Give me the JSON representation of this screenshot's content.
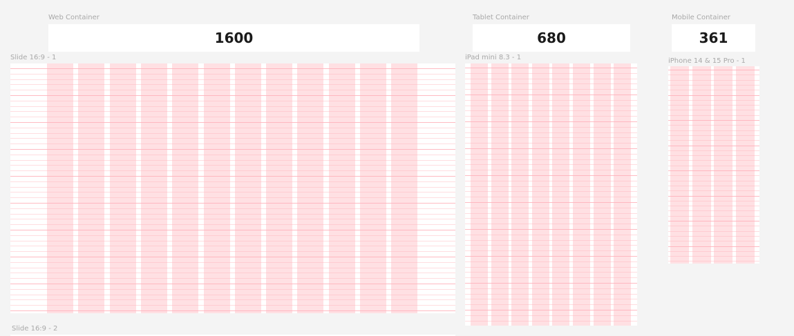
{
  "web": {
    "container_label": "Web Container",
    "container_value": "1600",
    "frame_label": "Slide 16:9 - 1",
    "columns": 12
  },
  "tablet": {
    "container_label": "Tablet Container",
    "container_value": "680",
    "frame_label": "iPad mini 8.3 - 1",
    "columns": 8
  },
  "mobile": {
    "container_label": "Mobile Container",
    "container_value": "361",
    "frame_label": "iPhone 14 & 15 Pro - 1",
    "columns": 4
  },
  "bottom_frame_label": "Slide 16:9 - 2",
  "colors": {
    "canvas": "#f4f4f4",
    "column_fill": "#ffd6da",
    "row_line": "#ffb3bb"
  }
}
